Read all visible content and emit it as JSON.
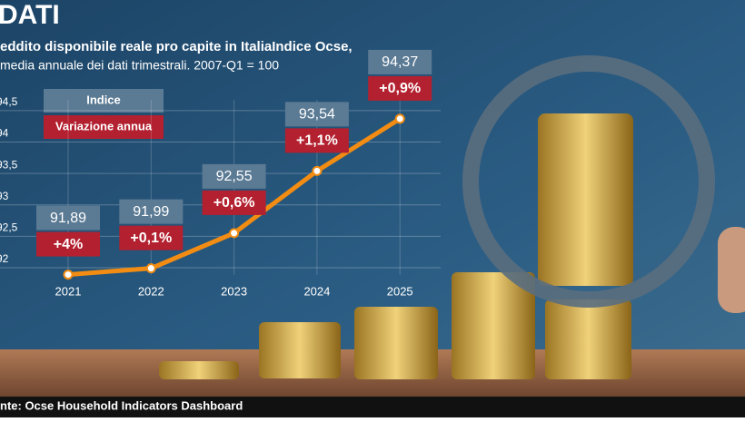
{
  "chart_data": {
    "type": "line",
    "title": "DATI",
    "subtitle": [
      "eddito disponibile reale pro capite in ItaliaIndice Ocse,",
      "media annuale dei dati trimestrali. 2007-Q1 = 100"
    ],
    "source": "nte: Ocse Household Indicators Dashboard",
    "categories": [
      "2021",
      "2022",
      "2023",
      "2024",
      "2025"
    ],
    "series": [
      {
        "name": "Indice",
        "color": "#f28c12",
        "values": [
          91.89,
          91.99,
          92.55,
          93.54,
          94.37
        ],
        "value_labels": [
          "91,89",
          "91,99",
          "92,55",
          "93,54",
          "94,37"
        ]
      },
      {
        "name": "Variazione annua",
        "color": "#b3202f",
        "values": [
          4,
          0.1,
          0.6,
          1.1,
          0.9
        ],
        "value_labels": [
          "+4%",
          "+0,1%",
          "+0,6%",
          "+1,1%",
          "+0,9%"
        ]
      }
    ],
    "ylim": [
      91.8,
      94.6
    ],
    "yticks": [
      92,
      {
        "value": 92.5,
        "label": "92,5"
      },
      93,
      {
        "value": 93.5,
        "label": "93,5"
      },
      94,
      {
        "value": 94.5,
        "label": "94,5"
      }
    ],
    "grid": true
  }
}
